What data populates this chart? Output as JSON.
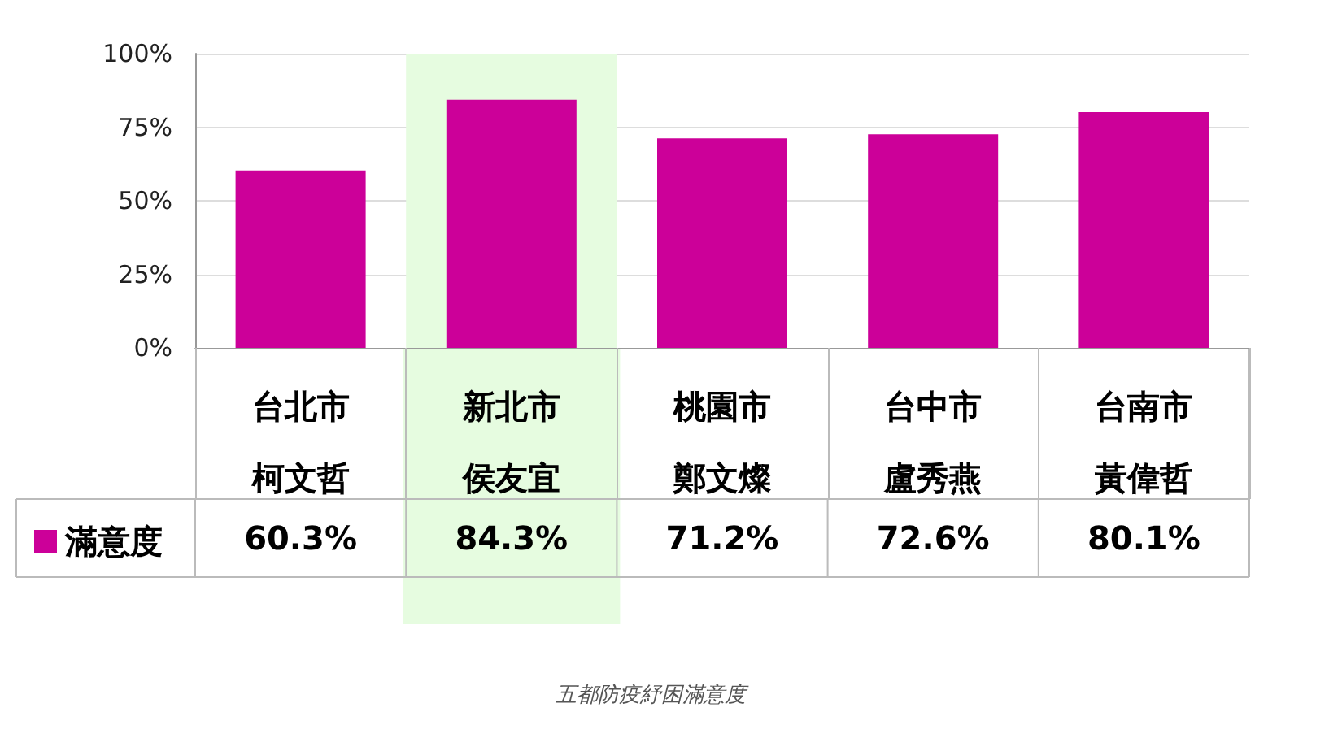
{
  "chart_data": {
    "type": "bar",
    "categories": [
      "台北市柯文哲",
      "新北市侯友宜",
      "桃園市鄭文燦",
      "台中市盧秀燕",
      "台南市黃偉哲"
    ],
    "series": [
      {
        "name": "滿意度",
        "color": "#cc0099",
        "values": [
          60.3,
          84.3,
          71.2,
          72.6,
          80.1
        ],
        "value_labels": [
          "60.3%",
          "84.3%",
          "71.2%",
          "72.6%",
          "80.1%"
        ]
      }
    ],
    "ylim": [
      0,
      100
    ],
    "yticks": [
      {
        "value": 0,
        "label": "0%"
      },
      {
        "value": 25,
        "label": "25%"
      },
      {
        "value": 50,
        "label": "50%"
      },
      {
        "value": 75,
        "label": "75%"
      },
      {
        "value": 100,
        "label": "100%"
      }
    ],
    "grid": "y",
    "legend": "bottom left",
    "bands": [
      {
        "axis": "x",
        "from": "新北市侯友宜",
        "to": "新北市侯友宜",
        "color": "#e6fce0"
      }
    ],
    "annotations": [
      "五都防疫紓困滿意度"
    ]
  }
}
